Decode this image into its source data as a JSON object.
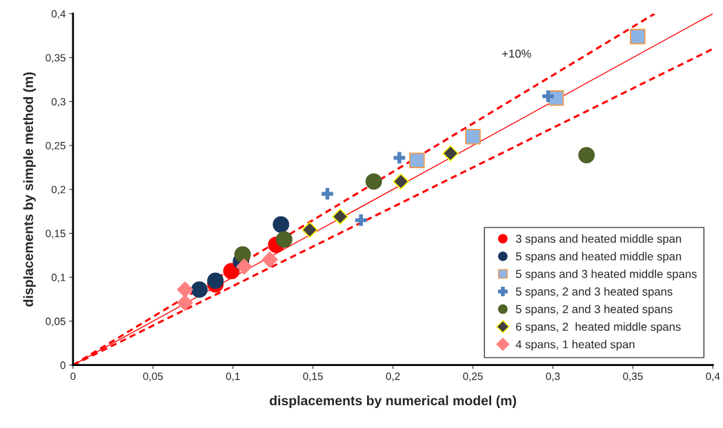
{
  "chart_data": {
    "type": "scatter",
    "xlabel": "displacements by numerical model (m)",
    "ylabel": "displacements by simple method (m)",
    "xlim": [
      0,
      0.4
    ],
    "ylim": [
      0,
      0.4
    ],
    "xticks": [
      0,
      {
        "value": 0.05,
        "label": "0,05"
      },
      {
        "value": 0.1,
        "label": "0,1"
      },
      {
        "value": 0.15,
        "label": "0,15"
      },
      {
        "value": 0.2,
        "label": "0,2"
      },
      {
        "value": 0.25,
        "label": "0,25"
      },
      {
        "value": 0.3,
        "label": "0,3"
      },
      {
        "value": 0.35,
        "label": "0,35"
      },
      {
        "value": 0.4,
        "label": "0,4"
      }
    ],
    "yticks": [
      0,
      {
        "value": 0.05,
        "label": "0,05"
      },
      {
        "value": 0.1,
        "label": "0,1"
      },
      {
        "value": 0.15,
        "label": "0,15"
      },
      {
        "value": 0.2,
        "label": "0,2"
      },
      {
        "value": 0.25,
        "label": "0,25"
      },
      {
        "value": 0.3,
        "label": "0,3"
      },
      {
        "value": 0.35,
        "label": "0,35"
      },
      {
        "value": 0.4,
        "label": "0,4"
      }
    ],
    "grid": false,
    "legend": "bottom right",
    "annotations": [
      "+10%"
    ],
    "series": [
      {
        "name": "3 spans and heated middle span",
        "color": "#ff0000",
        "marker": "circle",
        "x": [
          0.089,
          0.099,
          0.127
        ],
        "values": [
          0.092,
          0.107,
          0.137
        ]
      },
      {
        "name": "5 spans and heated middle span",
        "color": "#17375e",
        "marker": "circle",
        "x": [
          0.079,
          0.089,
          0.105,
          0.13
        ],
        "values": [
          0.086,
          0.096,
          0.118,
          0.16
        ]
      },
      {
        "name": "5 spans and 3 heated middle spans",
        "color": "#8eb4e3",
        "marker": "square",
        "x": [
          0.215,
          0.25,
          0.302,
          0.353
        ],
        "values": [
          0.233,
          0.26,
          0.304,
          0.374
        ]
      },
      {
        "name": "5 spans, 2 and 3 heated spans",
        "color": "#4f81bd",
        "marker": "cross",
        "x": [
          0.159,
          0.18,
          0.204,
          0.297
        ],
        "values": [
          0.195,
          0.165,
          0.236,
          0.306
        ]
      },
      {
        "name": "5 spans, 2 and 3 heated spans",
        "color": "#4f6228",
        "marker": "circle",
        "x": [
          0.106,
          0.132,
          0.188,
          0.321
        ],
        "values": [
          0.126,
          0.143,
          0.209,
          0.239
        ]
      },
      {
        "name": "6 spans, 2  heated middle spans",
        "color": "#404040",
        "marker": "diamond",
        "x": [
          0.148,
          0.167,
          0.205,
          0.236
        ],
        "values": [
          0.154,
          0.169,
          0.209,
          0.241
        ]
      },
      {
        "name": "4 spans, 1 heated span",
        "color": "#ff8080",
        "marker": "diamond",
        "x": [
          0.07,
          0.07,
          0.107,
          0.123
        ],
        "values": [
          0.086,
          0.071,
          0.112,
          0.12
        ]
      },
      {
        "type": "line",
        "color": "#ff0000",
        "line_style": "solid",
        "x": [
          0,
          0.4
        ],
        "values": [
          0,
          0.4
        ]
      },
      {
        "type": "line",
        "color": "#ff0000",
        "line_style": "dashed",
        "x": [
          0,
          0.3636
        ],
        "values": [
          0,
          0.4
        ]
      },
      {
        "type": "line",
        "color": "#ff0000",
        "line_style": "dashed",
        "x": [
          0,
          0.4
        ],
        "values": [
          0,
          0.36
        ]
      }
    ]
  }
}
